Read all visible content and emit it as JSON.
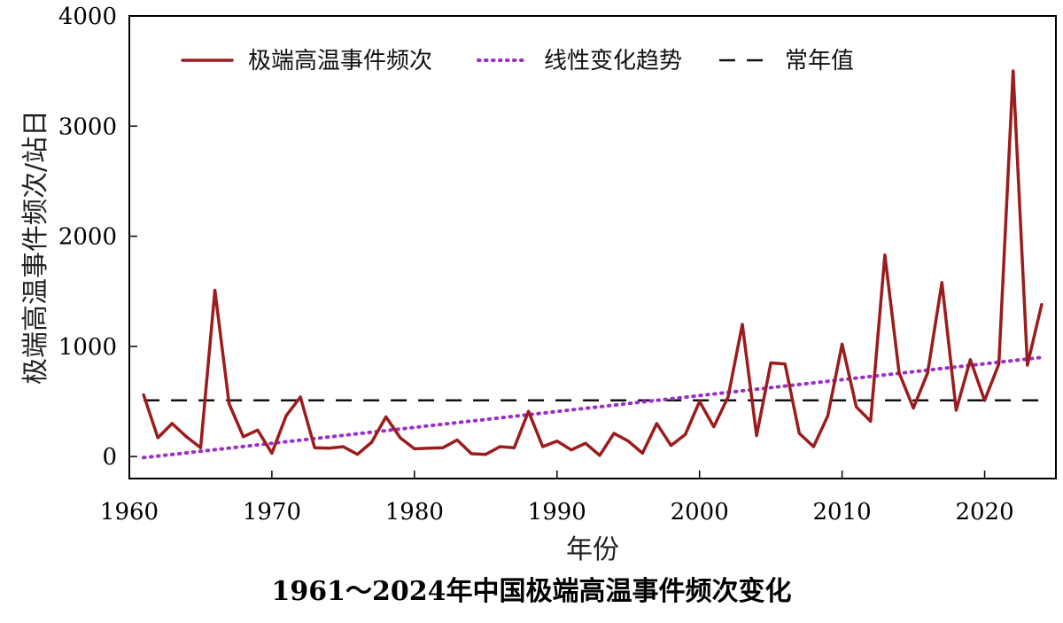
{
  "chart_data": {
    "type": "line",
    "title": "1961～2024年中国极端高温事件频次变化",
    "xlabel": "年份",
    "ylabel": "极端高温事件频次/站日",
    "xlim": [
      1960,
      2025
    ],
    "ylim": [
      -200,
      4000
    ],
    "xticks": [
      1960,
      1970,
      1980,
      1990,
      2000,
      2010,
      2020
    ],
    "yticks": [
      0,
      1000,
      2000,
      3000,
      4000
    ],
    "legend_position": "top",
    "series": [
      {
        "name": "极端高温事件频次",
        "style": "solid",
        "color": "#9b1c1c",
        "x": [
          1961,
          1962,
          1963,
          1964,
          1965,
          1966,
          1967,
          1968,
          1969,
          1970,
          1971,
          1972,
          1973,
          1974,
          1975,
          1976,
          1977,
          1978,
          1979,
          1980,
          1981,
          1982,
          1983,
          1984,
          1985,
          1986,
          1987,
          1988,
          1989,
          1990,
          1991,
          1992,
          1993,
          1994,
          1995,
          1996,
          1997,
          1998,
          1999,
          2000,
          2001,
          2002,
          2003,
          2004,
          2005,
          2006,
          2007,
          2008,
          2009,
          2010,
          2011,
          2012,
          2013,
          2014,
          2015,
          2016,
          2017,
          2018,
          2019,
          2020,
          2021,
          2022,
          2023,
          2024
        ],
        "y": [
          560,
          170,
          300,
          180,
          80,
          1510,
          480,
          180,
          240,
          30,
          370,
          540,
          80,
          75,
          90,
          20,
          130,
          360,
          170,
          70,
          75,
          80,
          150,
          25,
          20,
          90,
          80,
          410,
          90,
          140,
          60,
          120,
          10,
          210,
          140,
          30,
          300,
          100,
          200,
          500,
          270,
          540,
          1200,
          190,
          850,
          840,
          210,
          90,
          370,
          1020,
          450,
          320,
          1830,
          760,
          440,
          760,
          1580,
          420,
          880,
          510,
          840,
          3500,
          830,
          1380
        ]
      },
      {
        "name": "线性变化趋势",
        "style": "dotted",
        "color": "#9a2fc9",
        "x": [
          1961,
          2024
        ],
        "y": [
          -10,
          900
        ]
      },
      {
        "name": "常年值",
        "style": "dashed",
        "color": "#111111",
        "x": [
          1961,
          2024
        ],
        "y": [
          510,
          510
        ]
      }
    ]
  }
}
